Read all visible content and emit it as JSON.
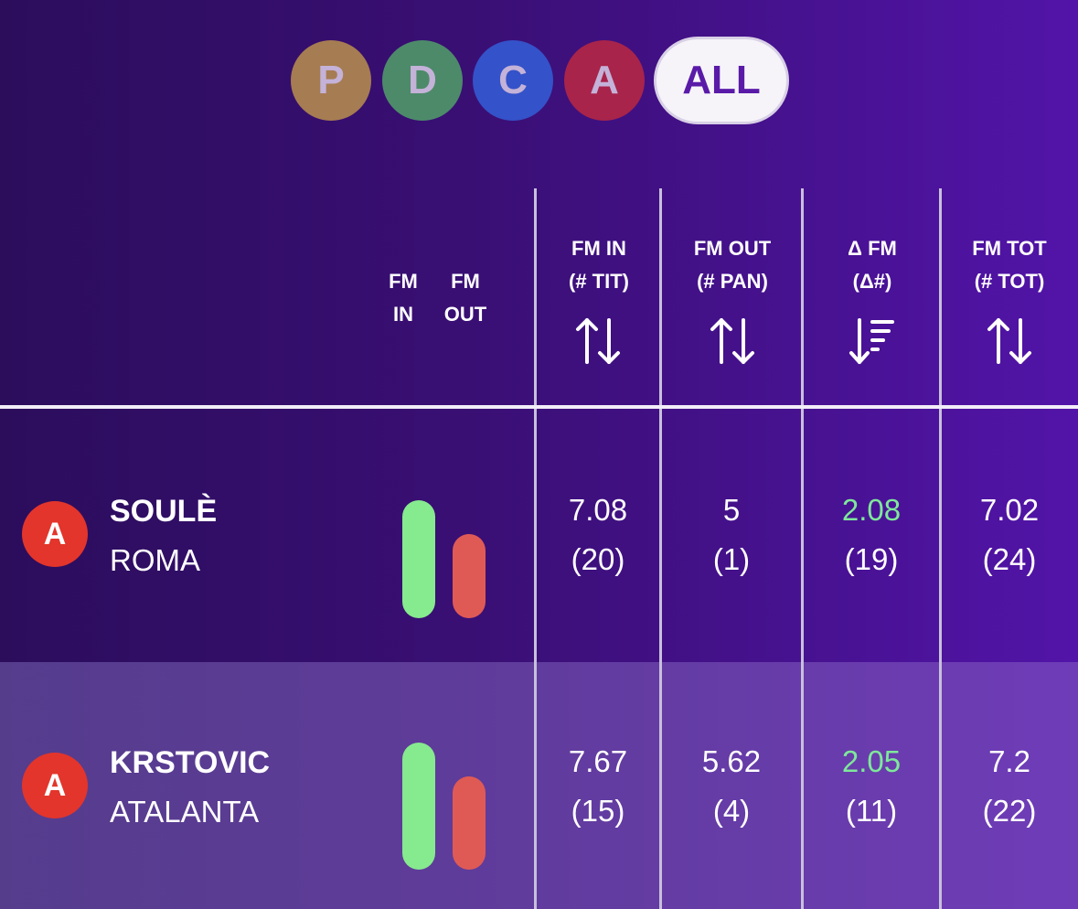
{
  "filters": {
    "items": [
      {
        "label": "P",
        "color": "#a67c52"
      },
      {
        "label": "D",
        "color": "#4d8a6a"
      },
      {
        "label": "C",
        "color": "#3452c9"
      },
      {
        "label": "A",
        "color": "#a8244a"
      }
    ],
    "all_label": "ALL"
  },
  "header": {
    "fm_in": [
      "FM",
      "IN"
    ],
    "fm_out": [
      "FM",
      "OUT"
    ],
    "columns": [
      {
        "line1": "FM IN",
        "line2": "(# TIT)",
        "sort_icon": "sort-both-icon"
      },
      {
        "line1": "FM OUT",
        "line2": "(# PAN)",
        "sort_icon": "sort-both-icon"
      },
      {
        "line1": "Δ FM",
        "line2": "(Δ#)",
        "sort_icon": "sort-descending-icon"
      },
      {
        "line1": "FM TOT",
        "line2": "(# TOT)",
        "sort_icon": "sort-both-icon"
      }
    ]
  },
  "colors": {
    "positive": "#7ee89a",
    "in_bar": "#86ea8e",
    "out_bar": "#e05a55",
    "role_badge": "#e3352b"
  },
  "rows": [
    {
      "role": "A",
      "name": "SOULÈ",
      "team": "ROMA",
      "fm_in_level": 1.0,
      "fm_out_level": 0.7,
      "fm_in": "7.08",
      "tit": "(20)",
      "fm_out": "5",
      "pan": "(1)",
      "delta": "2.08",
      "delta_n": "(19)",
      "fm_tot": "7.02",
      "tot": "(24)"
    },
    {
      "role": "A",
      "name": "KRSTOVIC",
      "team": "ATALANTA",
      "fm_in_level": 1.0,
      "fm_out_level": 0.73,
      "fm_in": "7.67",
      "tit": "(15)",
      "fm_out": "5.62",
      "pan": "(4)",
      "delta": "2.05",
      "delta_n": "(11)",
      "fm_tot": "7.2",
      "tot": "(22)"
    }
  ]
}
